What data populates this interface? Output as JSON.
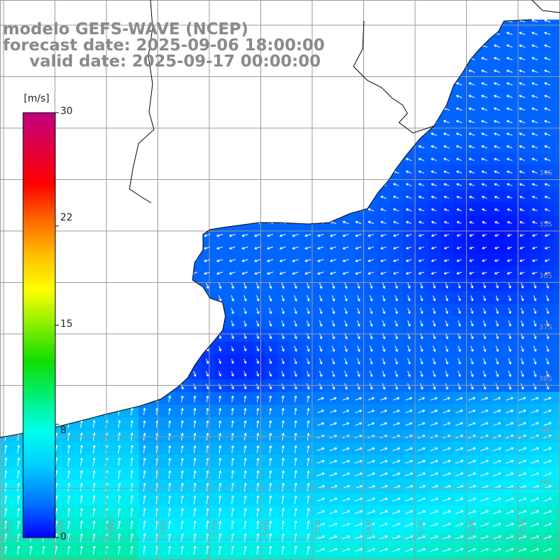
{
  "header": {
    "model": "modelo GEFS-WAVE (NCEP)",
    "forecast": "forecast date: 2025-09-06 18:00:00",
    "valid": "valid date: 2025-09-17 00:00:00"
  },
  "colorbar": {
    "unit": "[m/s]",
    "min": 0,
    "max": 30,
    "ticks": [
      {
        "value": 30,
        "label": "30"
      },
      {
        "value": 22,
        "label": "22"
      },
      {
        "value": 15,
        "label": "15"
      },
      {
        "value": 8,
        "label": "8"
      },
      {
        "value": 0,
        "label": "0"
      }
    ],
    "colors": [
      "#0000ff",
      "#0077ff",
      "#00ccff",
      "#00ffee",
      "#00ee77",
      "#11dd00",
      "#88ee00",
      "#ffff00",
      "#ffbb00",
      "#ff6600",
      "#ff0000",
      "#e00040",
      "#c00080"
    ]
  },
  "map": {
    "region": "South Atlantic — Uruguay / Rio de la Plata / southern Brazil coast",
    "lat_labels": [
      "34S",
      "35S",
      "36S",
      "37S",
      "38S",
      "39S",
      "40S"
    ],
    "lon_labels": [
      "61W",
      "60W",
      "59W",
      "58W",
      "57W",
      "56W",
      "55W",
      "54W",
      "53W",
      "52W",
      "51W"
    ],
    "land_color": "#ffffff",
    "coast_color": "#000000",
    "grid_color": "#9a9a9a",
    "arrow_color": "#ffffff"
  }
}
